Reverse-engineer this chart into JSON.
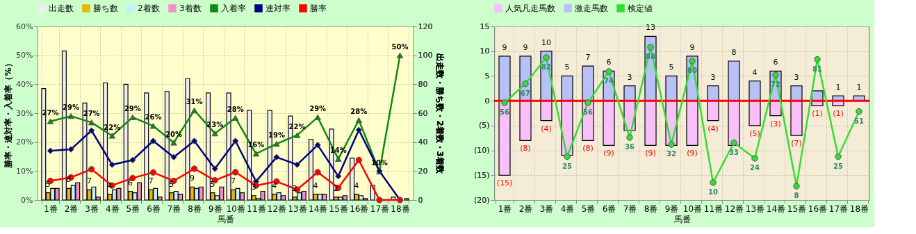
{
  "chart_data": [
    {
      "type": "bar",
      "xlabel": "馬番",
      "ylabel": "勝率・連対率・入着率（%）",
      "y2label": "出走数・勝ち数・2着数・3着数",
      "grid": true,
      "legend": "top",
      "categories": [
        "1番",
        "2番",
        "3番",
        "4番",
        "5番",
        "6番",
        "7番",
        "8番",
        "9番",
        "10番",
        "11番",
        "12番",
        "13番",
        "14番",
        "15番",
        "16番",
        "17番",
        "18番"
      ],
      "ylim": [
        0,
        60
      ],
      "yticks": [
        {
          "value": 0,
          "label": "0%"
        },
        {
          "value": 10,
          "label": "10%"
        },
        {
          "value": 20,
          "label": "20%"
        },
        {
          "value": 30,
          "label": "30%"
        },
        {
          "value": 40,
          "label": "40%"
        },
        {
          "value": 50,
          "label": "50%"
        },
        {
          "value": 60,
          "label": "60%"
        }
      ],
      "y2lim": [
        0,
        120
      ],
      "y2ticks": [
        0,
        20,
        40,
        60,
        80,
        100,
        120
      ],
      "series": [
        {
          "name": "出走数",
          "color": "#eeeeee",
          "axis": "y2",
          "values": [
            77,
            103,
            67,
            81,
            80,
            74,
            75,
            84,
            74,
            74,
            62,
            62,
            58,
            42,
            49,
            29,
            10,
            2
          ]
        },
        {
          "name": "勝ち数",
          "color": "#e6b800",
          "axis": "y2",
          "values": [
            5,
            8,
            7,
            4,
            6,
            7,
            5,
            9,
            5,
            7,
            3,
            4,
            2,
            4,
            2,
            4,
            0,
            0
          ],
          "value_labels": [
            "5",
            "8",
            "7",
            "4",
            "6",
            "7",
            "5",
            "9",
            "5",
            "7",
            "3",
            "4",
            "2",
            "4",
            "2",
            "4",
            null,
            null
          ]
        },
        {
          "name": "2着数",
          "color": "#c0f0f8",
          "axis": "y2",
          "values": [
            8,
            10,
            9,
            7,
            5,
            8,
            6,
            8,
            3,
            8,
            1,
            5,
            5,
            4,
            2,
            3,
            null,
            0
          ]
        },
        {
          "name": "3着数",
          "color": "#f090c8",
          "axis": "y2",
          "values": [
            8,
            12,
            2,
            8,
            12,
            2,
            4,
            9,
            9,
            5,
            6,
            3,
            6,
            4,
            3,
            1,
            0,
            1
          ]
        },
        {
          "name": "入着率",
          "type": "line",
          "marker": "triangle",
          "color": "#118811",
          "axis": "y",
          "values": [
            27.2,
            29.0,
            26.8,
            22.2,
            28.6,
            25.6,
            19.8,
            31.0,
            23.0,
            28.4,
            16.0,
            19.4,
            22.4,
            28.6,
            14.2,
            27.6,
            9.8,
            50.0
          ],
          "value_labels": [
            "27%",
            "29%",
            "27%",
            "22%",
            "29%",
            "26%",
            "20%",
            "31%",
            "23%",
            "28%",
            "16%",
            "19%",
            "22%",
            "29%",
            "14%",
            "28%",
            "10%",
            "50%"
          ]
        },
        {
          "name": "連対率",
          "type": "line",
          "marker": "diamond",
          "color": "#000080",
          "axis": "y",
          "values": [
            17.0,
            17.5,
            24.0,
            12.2,
            13.8,
            20.4,
            14.8,
            20.4,
            10.8,
            20.4,
            6.4,
            14.8,
            12.2,
            19.0,
            8.2,
            24.2,
            10.0,
            0
          ]
        },
        {
          "name": "勝率",
          "type": "line",
          "marker": "circle",
          "color": "#ff0000",
          "axis": "y",
          "values": [
            6.6,
            7.8,
            10.6,
            5.0,
            7.6,
            9.5,
            6.6,
            10.8,
            6.8,
            9.6,
            5.0,
            6.4,
            3.6,
            9.6,
            4.2,
            13.8,
            0,
            0
          ]
        }
      ]
    },
    {
      "type": "bar",
      "xlabel": "馬番",
      "grid": true,
      "legend": "top",
      "stacked": true,
      "tick_labels": "xy",
      "categories": [
        "1番",
        "2番",
        "3番",
        "4番",
        "5番",
        "6番",
        "7番",
        "8番",
        "9番",
        "10番",
        "11番",
        "12番",
        "13番",
        "14番",
        "15番",
        "16番",
        "17番",
        "18番"
      ],
      "ylim": [
        -20,
        15
      ],
      "yticks": [
        {
          "value": -20,
          "label": "(20)"
        },
        {
          "value": -15,
          "label": "(15)"
        },
        {
          "value": -10,
          "label": "(10)"
        },
        {
          "value": -5,
          "label": "(5)"
        },
        0,
        5,
        10,
        15
      ],
      "y2lim": [
        0,
        100
      ],
      "ref_lines": [
        {
          "axis": "y",
          "value": 0,
          "color": "#ff0000"
        }
      ],
      "series": [
        {
          "name": "人気凡走馬数",
          "color": "#f8c0f8",
          "axis": "y",
          "values": [
            -15,
            -8,
            -4,
            -11,
            -8,
            -9,
            -6,
            -9,
            -9,
            -9,
            -4,
            -9,
            -5,
            -3,
            -7,
            -1,
            -1,
            null
          ],
          "value_labels": [
            "(15)",
            "(8)",
            "(4)",
            null,
            "(8)",
            "(9)",
            null,
            "(9)",
            null,
            "(9)",
            "(4)",
            null,
            "(5)",
            "(3)",
            "(7)",
            "(1)",
            "(1)",
            null
          ]
        },
        {
          "name": "激走馬数",
          "color": "#b8c0f8",
          "axis": "y",
          "values": [
            9,
            9,
            10,
            5,
            7,
            6,
            3,
            13,
            5,
            9,
            3,
            8,
            4,
            6,
            3,
            2,
            1,
            1
          ],
          "value_labels": [
            "9",
            "9",
            "10",
            "5",
            "7",
            "6",
            "3",
            "13",
            "5",
            "9",
            "3",
            "8",
            "4",
            "6",
            "3",
            null,
            "1",
            "1"
          ]
        },
        {
          "name": "検定値",
          "type": "line",
          "marker": "circle",
          "color": "#33dd33",
          "axis": "y2",
          "values": [
            56,
            67,
            82,
            25,
            56,
            74,
            36,
            88,
            32,
            80,
            10,
            33,
            24,
            72,
            8,
            81,
            25,
            51
          ],
          "value_labels": [
            "56",
            "67",
            "82",
            "25",
            "56",
            "74",
            "36",
            "88",
            "32",
            "80",
            "10",
            "33",
            "24",
            "72",
            "8",
            "81",
            "25",
            "51"
          ]
        }
      ]
    }
  ]
}
